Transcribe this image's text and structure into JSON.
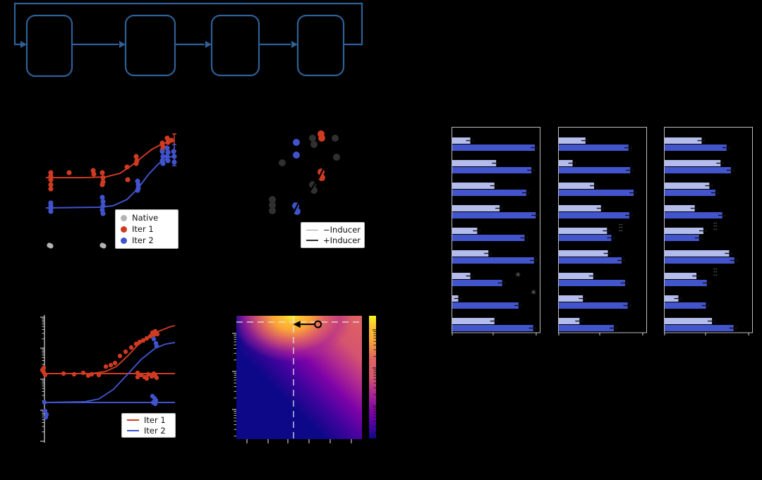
{
  "colors": {
    "background": "#000000",
    "flow_blue": "#2f6096",
    "red": "#cf3a22",
    "blue": "#4053cc",
    "gray": "#b3b3b3",
    "dark_dot": "#303030",
    "bar_light": "#b3bcea",
    "bar_dark": "#4355cd",
    "frame": "#bdbdbd",
    "tick": "#d9d9d9",
    "annotation": "#7a7a7a",
    "legend_border": "#bbbbbb",
    "legend_bg": "#ffffff",
    "plasma": [
      "#0d0887",
      "#4903a0",
      "#7e03a8",
      "#b12a90",
      "#d5546e",
      "#e16462",
      "#fca636",
      "#fdc432",
      "#f0f921"
    ]
  },
  "flowchart": {
    "box_labels": [
      "",
      "",
      "",
      ""
    ],
    "loop_back": true
  },
  "chart_data": [
    {
      "id": "dose-response-top",
      "type": "scatter",
      "note": "axis labels not visible in image; coordinates are plot-area pixels",
      "legend": [
        "Native",
        "Iter 1",
        "Iter 2"
      ],
      "series": [
        {
          "name": "Native",
          "color": "gray",
          "points": [
            [
              15,
              173
            ],
            [
              17,
              174
            ],
            [
              90,
              173
            ],
            [
              92,
              174
            ],
            [
              141,
              174
            ],
            [
              143,
              174
            ],
            [
              173,
              174
            ],
            [
              175,
              174
            ],
            [
              185,
              174
            ],
            [
              187,
              174
            ],
            [
              191,
              174
            ]
          ]
        },
        {
          "name": "Iter 1",
          "color": "red",
          "curve": [
            [
              10,
              77
            ],
            [
              65,
              77
            ],
            [
              95,
              76
            ],
            [
              115,
              71
            ],
            [
              130,
              61
            ],
            [
              145,
              49
            ],
            [
              160,
              37
            ],
            [
              175,
              29
            ],
            [
              188,
              25
            ]
          ],
          "errorbar": [
            192,
            15,
            39
          ],
          "points": [
            [
              17,
              70
            ],
            [
              17,
              75
            ],
            [
              17,
              80
            ],
            [
              17,
              87
            ],
            [
              17,
              93
            ],
            [
              43,
              70
            ],
            [
              77,
              67
            ],
            [
              78,
              72
            ],
            [
              90,
              70
            ],
            [
              91,
              77
            ],
            [
              91,
              83
            ],
            [
              90,
              87
            ],
            [
              125,
              62
            ],
            [
              126,
              80
            ],
            [
              138,
              47
            ],
            [
              139,
              53
            ],
            [
              138,
              57
            ],
            [
              175,
              28
            ],
            [
              176,
              33
            ],
            [
              175,
              38
            ],
            [
              182,
              21
            ],
            [
              183,
              27
            ],
            [
              188,
              24
            ]
          ]
        },
        {
          "name": "Iter 2",
          "color": "blue",
          "curve": [
            [
              10,
              120
            ],
            [
              85,
              119
            ],
            [
              105,
              117
            ],
            [
              125,
              108
            ],
            [
              140,
              93
            ],
            [
              155,
              73
            ],
            [
              170,
              57
            ],
            [
              183,
              49
            ],
            [
              191,
              46
            ]
          ],
          "errorbar": [
            192,
            30,
            60
          ],
          "points": [
            [
              17,
              113
            ],
            [
              17,
              117
            ],
            [
              17,
              121
            ],
            [
              17,
              125
            ],
            [
              90,
              105
            ],
            [
              91,
              111
            ],
            [
              91,
              117
            ],
            [
              90,
              123
            ],
            [
              91,
              128
            ],
            [
              140,
              82
            ],
            [
              141,
              87
            ],
            [
              141,
              92
            ],
            [
              140,
              95
            ],
            [
              175,
              40
            ],
            [
              176,
              47
            ],
            [
              175,
              53
            ],
            [
              176,
              57
            ],
            [
              182,
              35
            ],
            [
              183,
              41
            ],
            [
              182,
              47
            ],
            [
              183,
              53
            ],
            [
              191,
              40
            ],
            [
              192,
              47
            ],
            [
              192,
              55
            ]
          ]
        }
      ]
    },
    {
      "id": "inducer-scatter",
      "type": "scatter",
      "legend": [
        "−Inducer",
        "+Inducer"
      ],
      "series": [
        {
          "name": "dark",
          "color": "dark_dot",
          "points": [
            [
              40,
              59
            ],
            [
              83,
              24
            ],
            [
              85,
              33
            ],
            [
              115,
              24
            ],
            [
              117,
              51
            ],
            [
              83,
              90
            ],
            [
              85,
              98
            ],
            [
              26,
              111
            ],
            [
              26,
              119
            ],
            [
              26,
              127
            ]
          ]
        },
        {
          "name": "blue",
          "color": "blue",
          "points": [
            [
              60,
              30
            ],
            [
              60,
              48
            ],
            [
              59,
              120
            ],
            [
              61,
              128
            ]
          ]
        },
        {
          "name": "red",
          "color": "red",
          "points": [
            [
              95,
              18
            ],
            [
              96,
              24
            ],
            [
              95,
              72
            ],
            [
              96,
              80
            ]
          ]
        }
      ],
      "slashes": [
        [
          91,
          82,
          99,
          66
        ],
        [
          79,
          100,
          89,
          84
        ],
        [
          56,
          130,
          64,
          114
        ]
      ]
    },
    {
      "id": "bars-1",
      "type": "bar",
      "orientation": "horizontal",
      "groups": 9,
      "xlim": [
        0,
        1
      ],
      "series": [
        {
          "name": "light",
          "values": [
            0.21,
            0.51,
            0.49,
            0.55,
            0.29,
            0.42,
            0.21,
            0.07,
            0.49
          ]
        },
        {
          "name": "dark",
          "values": [
            0.96,
            0.92,
            0.86,
            0.97,
            0.84,
            0.95,
            0.58,
            0.77,
            0.94
          ]
        }
      ],
      "annotations": [
        {
          "group": 7,
          "x": 90,
          "y": 213,
          "lines": [
            "✳"
          ],
          "size": 10
        },
        {
          "group": 8,
          "x": 112,
          "y": 238,
          "lines": [
            "✳"
          ],
          "size": 10
        }
      ]
    },
    {
      "id": "bars-2",
      "type": "bar",
      "orientation": "horizontal",
      "groups": 9,
      "xlim": [
        0,
        1
      ],
      "series": [
        {
          "name": "light",
          "values": [
            0.31,
            0.16,
            0.41,
            0.49,
            0.56,
            0.57,
            0.4,
            0.28,
            0.24
          ]
        },
        {
          "name": "dark",
          "values": [
            0.81,
            0.83,
            0.87,
            0.82,
            0.61,
            0.73,
            0.77,
            0.8,
            0.64
          ]
        }
      ],
      "annotations": [
        {
          "group": 5,
          "x": 86,
          "y": 140,
          "lines": [
            "✳✳",
            "✳✳",
            "✳✳"
          ],
          "size": 3.5
        }
      ]
    },
    {
      "id": "bars-3",
      "type": "bar",
      "orientation": "horizontal",
      "groups": 9,
      "xlim": [
        0,
        1
      ],
      "series": [
        {
          "name": "light",
          "values": [
            0.43,
            0.65,
            0.52,
            0.35,
            0.45,
            0.75,
            0.37,
            0.16,
            0.55
          ]
        },
        {
          "name": "dark",
          "values": [
            0.72,
            0.77,
            0.59,
            0.67,
            0.4,
            0.81,
            0.49,
            0.48,
            0.8
          ]
        }
      ],
      "annotations": [
        {
          "group": 5,
          "x": 70,
          "y": 138,
          "lines": [
            "✳✳",
            "✳✳",
            "✳✳"
          ],
          "size": 3.5
        },
        {
          "group": 7,
          "x": 70,
          "y": 203,
          "lines": [
            "✳✳",
            "✳✳",
            "✳✳"
          ],
          "size": 3.5
        }
      ]
    },
    {
      "id": "dose-response-bottom",
      "type": "line",
      "yscale": "log",
      "legend": [
        "Iter 1",
        "Iter 2"
      ],
      "series": [
        {
          "name": "Iter 1",
          "color": "red",
          "curves": [
            [
              [
                15,
                90
              ],
              [
                198,
                90
              ]
            ],
            [
              [
                15,
                90
              ],
              [
                80,
                90
              ],
              [
                100,
                87
              ],
              [
                115,
                80
              ],
              [
                130,
                66
              ],
              [
                145,
                50
              ],
              [
                160,
                38
              ],
              [
                175,
                30
              ],
              [
                190,
                24
              ],
              [
                198,
                22
              ]
            ]
          ],
          "points": [
            [
              10,
              85
            ],
            [
              12,
              82
            ],
            [
              12,
              88
            ],
            [
              14,
              92
            ],
            [
              40,
              90
            ],
            [
              55,
              91
            ],
            [
              68,
              89
            ],
            [
              75,
              93
            ],
            [
              80,
              91
            ],
            [
              90,
              92
            ],
            [
              100,
              80
            ],
            [
              107,
              78
            ],
            [
              113,
              75
            ],
            [
              120,
              65
            ],
            [
              128,
              59
            ],
            [
              136,
              53
            ],
            [
              143,
              48
            ],
            [
              148,
              45
            ],
            [
              153,
              43
            ],
            [
              158,
              40
            ],
            [
              163,
              37
            ],
            [
              166,
              32
            ],
            [
              168,
              35
            ],
            [
              170,
              30
            ],
            [
              171,
              33
            ],
            [
              173,
              34
            ],
            [
              145,
              89
            ],
            [
              150,
              92
            ],
            [
              155,
              95
            ],
            [
              160,
              91
            ],
            [
              165,
              94
            ],
            [
              168,
              90
            ],
            [
              170,
              93
            ],
            [
              172,
              96
            ],
            [
              145,
              95
            ],
            [
              158,
              97
            ]
          ]
        },
        {
          "name": "Iter 2",
          "color": "blue",
          "curves": [
            [
              [
                15,
                131
              ],
              [
                198,
                131
              ]
            ],
            [
              [
                15,
                131
              ],
              [
                70,
                130
              ],
              [
                90,
                126
              ],
              [
                110,
                113
              ],
              [
                130,
                92
              ],
              [
                150,
                70
              ],
              [
                170,
                54
              ],
              [
                185,
                48
              ],
              [
                198,
                46
              ]
            ]
          ],
          "points": [
            [
              13,
              131
            ],
            [
              14,
              143
            ],
            [
              16,
              148
            ],
            [
              15,
              152
            ],
            [
              168,
              41
            ],
            [
              171,
              47
            ],
            [
              172,
              51
            ],
            [
              166,
              122
            ],
            [
              169,
              125
            ],
            [
              171,
              128
            ],
            [
              167,
              131
            ],
            [
              170,
              133
            ]
          ]
        }
      ]
    },
    {
      "id": "heatmap",
      "type": "heatmap",
      "colormap": "plasma",
      "yscale": "log",
      "crosshair": {
        "x_frac": 0.455,
        "y_frac": 0.051
      },
      "arrow": {
        "from_frac": [
          0.65,
          0.069
        ],
        "to_frac": [
          0.465,
          0.069
        ],
        "tail_marker": "open-circle"
      },
      "x_tick_count": 6,
      "colorbar": true
    }
  ]
}
